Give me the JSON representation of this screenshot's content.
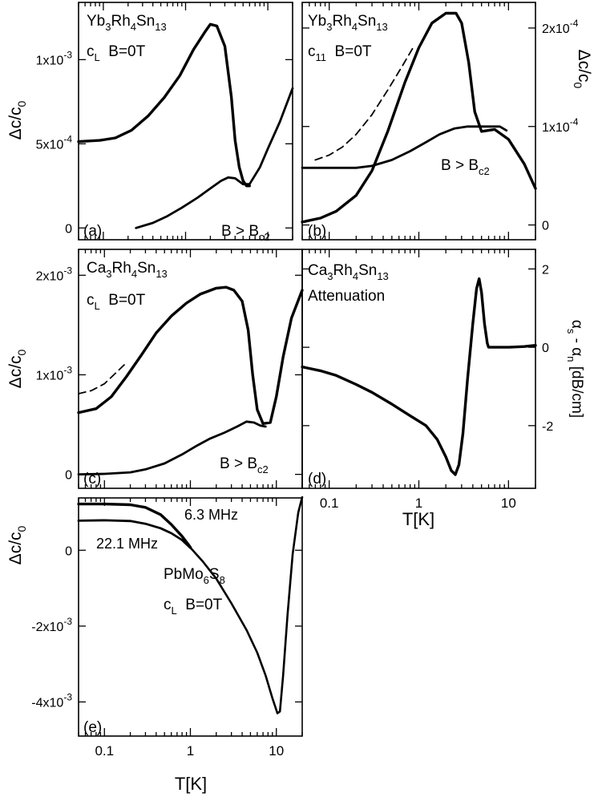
{
  "chart_data": [
    {
      "panel": "(a)",
      "type": "line",
      "compound": "Yb3Rh4Sn13",
      "mode": "cL",
      "field": "B=0T",
      "ylabel": "Δc/c0",
      "xscale": "log",
      "xlim": [
        0.05,
        20
      ],
      "ylim": [
        -7e-05,
        0.00134
      ],
      "yticks": [
        0,
        0.0005,
        0.001
      ],
      "ytick_labels": [
        {
          "mant": "0",
          "exp": ""
        },
        {
          "mant": "5x10",
          "exp": "-4"
        },
        {
          "mant": "1x10",
          "exp": "-3"
        }
      ],
      "annotations": [
        "B > Bc2"
      ],
      "series": [
        {
          "name": "B=0T",
          "dash": "solid",
          "x": [
            0.05,
            0.09,
            0.14,
            0.22,
            0.35,
            0.55,
            0.85,
            1.25,
            1.75,
            2.0,
            2.4,
            3.0,
            3.6,
            4.0,
            4.5,
            5.0,
            5.5,
            6.0
          ],
          "y": [
            0.000513,
            0.00052,
            0.000535,
            0.00058,
            0.000665,
            0.000775,
            0.000905,
            0.00106,
            0.00117,
            0.00121,
            0.0012,
            0.00108,
            0.00078,
            0.00052,
            0.00036,
            0.00028,
            0.00025,
            0.00025
          ]
        },
        {
          "name": "B > Bc2",
          "dash": "solid",
          "x": [
            0.25,
            0.4,
            0.6,
            0.9,
            1.4,
            2.0,
            2.7,
            3.3,
            4.0,
            5.0,
            6.0,
            8.0,
            10,
            14,
            20
          ],
          "y": [
            0.0,
            3e-05,
            7e-05,
            0.00012,
            0.00018,
            0.000235,
            0.00028,
            0.0003,
            0.000295,
            0.00026,
            0.00026,
            0.00036,
            0.00047,
            0.00063,
            0.00083
          ]
        }
      ]
    },
    {
      "panel": "(b)",
      "type": "line",
      "compound": "Yb3Rh4Sn13",
      "mode": "c11",
      "field": "B=0T",
      "ylabel": "Δc/c0",
      "ylabel_side": "right",
      "xscale": "log",
      "xlim": [
        0.05,
        20
      ],
      "ylim": [
        -1.5e-05,
        0.000226
      ],
      "yticks": [
        0,
        0.0001,
        0.0002
      ],
      "ytick_labels": [
        {
          "mant": "0",
          "exp": ""
        },
        {
          "mant": "1x10",
          "exp": "-4"
        },
        {
          "mant": "2x10",
          "exp": "-4"
        }
      ],
      "annotations": [
        "B > Bc2"
      ],
      "series": [
        {
          "name": "B=0T",
          "dash": "solid",
          "x": [
            0.05,
            0.08,
            0.12,
            0.2,
            0.3,
            0.45,
            0.7,
            1.0,
            1.4,
            2.0,
            2.6,
            3.0,
            3.6,
            4.2,
            5.0,
            7.0,
            10,
            15,
            20
          ],
          "y": [
            3e-06,
            7e-06,
            1.4e-05,
            3e-05,
            5.5e-05,
            9.5e-05,
            0.000145,
            0.00018,
            0.000205,
            0.000215,
            0.000215,
            0.000205,
            0.000165,
            0.000115,
            9.5e-05,
            9.7e-05,
            8.7e-05,
            6.2e-05,
            3.7e-05
          ]
        },
        {
          "name": "B > Bc2",
          "dash": "solid",
          "x": [
            0.05,
            0.1,
            0.2,
            0.3,
            0.5,
            0.8,
            1.2,
            1.7,
            2.5,
            3.5,
            5.0,
            6.5,
            8.0,
            9.5
          ],
          "y": [
            5.8e-05,
            5.8e-05,
            5.8e-05,
            6e-05,
            6.6e-05,
            7.5e-05,
            8.4e-05,
            9.2e-05,
            9.8e-05,
            0.0001,
            0.0001,
            0.0001,
            0.0001,
            9.6e-05
          ]
        },
        {
          "name": "",
          "dash": "dashed",
          "x": [
            0.07,
            0.1,
            0.14,
            0.2,
            0.3,
            0.45,
            0.65,
            0.9
          ],
          "y": [
            6.6e-05,
            7.1e-05,
            7.9e-05,
            9.2e-05,
            0.000112,
            0.000137,
            0.000161,
            0.000183
          ]
        }
      ]
    },
    {
      "panel": "(c)",
      "type": "line",
      "compound": "Ca3Rh4Sn13",
      "mode": "cL",
      "field": "B=0T",
      "ylabel": "Δc/c0",
      "xscale": "log",
      "xlim": [
        0.05,
        20
      ],
      "ylim": [
        -0.00014,
        0.00226
      ],
      "yticks": [
        0,
        0.001,
        0.002
      ],
      "ytick_labels": [
        {
          "mant": "0",
          "exp": ""
        },
        {
          "mant": "1x10",
          "exp": "-3"
        },
        {
          "mant": "2x10",
          "exp": "-3"
        }
      ],
      "annotations": [
        "B > Bc2"
      ],
      "series": [
        {
          "name": "B=0T",
          "dash": "solid",
          "x": [
            0.05,
            0.08,
            0.12,
            0.18,
            0.27,
            0.4,
            0.6,
            0.9,
            1.3,
            2.0,
            2.6,
            3.2,
            4.0,
            4.7,
            5.3,
            6.0,
            7.0,
            8.5,
            10,
            12,
            15,
            20
          ],
          "y": [
            0.00062,
            0.00066,
            0.00078,
            0.00098,
            0.0012,
            0.00142,
            0.00159,
            0.00172,
            0.00181,
            0.00187,
            0.00188,
            0.00185,
            0.00174,
            0.00145,
            0.001,
            0.00065,
            0.00051,
            0.00052,
            0.00078,
            0.00118,
            0.00157,
            0.00185
          ]
        },
        {
          "name": "B > Bc2",
          "dash": "solid",
          "x": [
            0.05,
            0.1,
            0.2,
            0.3,
            0.5,
            0.8,
            1.2,
            1.7,
            2.5,
            3.5,
            4.5,
            5.5,
            6.5,
            7.5
          ],
          "y": [
            0.0,
            5e-06,
            2e-05,
            5e-05,
            0.00011,
            0.0002,
            0.00029,
            0.00036,
            0.00042,
            0.00048,
            0.00053,
            0.00052,
            0.00049,
            0.00048
          ]
        },
        {
          "name": "",
          "dash": "dashed",
          "x": [
            0.05,
            0.07,
            0.1,
            0.14,
            0.18
          ],
          "y": [
            0.00081,
            0.00084,
            0.00091,
            0.00103,
            0.00112
          ]
        }
      ]
    },
    {
      "panel": "(d)",
      "type": "line",
      "compound": "Ca3Rh4Sn13",
      "mode": "Attenuation",
      "ylabel": "αs - αn [dB/cm]",
      "ylabel_side": "right",
      "xlabel": "T[K]",
      "xscale": "log",
      "xlim": [
        0.05,
        20
      ],
      "ylim": [
        -3.6,
        2.5
      ],
      "yticks": [
        -2,
        0,
        2
      ],
      "ytick_labels": [
        {
          "mant": "-2",
          "exp": ""
        },
        {
          "mant": "0",
          "exp": ""
        },
        {
          "mant": "2",
          "exp": ""
        }
      ],
      "xticks": [
        0.1,
        1,
        10
      ],
      "xtick_labels": [
        "0.1",
        "1",
        "10"
      ],
      "series": [
        {
          "name": "Attenuation",
          "dash": "solid",
          "x": [
            0.05,
            0.08,
            0.12,
            0.2,
            0.3,
            0.5,
            0.8,
            1.2,
            1.6,
            2.0,
            2.3,
            2.55,
            2.8,
            3.1,
            3.5,
            4.0,
            4.4,
            4.7,
            5.0,
            5.4,
            5.8,
            6.0,
            7.0,
            8.0,
            10,
            15,
            20
          ],
          "y": [
            -0.5,
            -0.6,
            -0.72,
            -0.95,
            -1.15,
            -1.45,
            -1.75,
            -2.0,
            -2.35,
            -2.8,
            -3.15,
            -3.25,
            -3.0,
            -2.2,
            -0.8,
            0.6,
            1.5,
            1.75,
            1.4,
            0.6,
            0.1,
            0.0,
            0.0,
            0.0,
            0.0,
            0.02,
            0.05
          ]
        }
      ]
    },
    {
      "panel": "(e)",
      "type": "line",
      "compound": "PbMo6S8",
      "mode": "cL",
      "field": "B=0T",
      "ylabel": "Δc/c0",
      "xlabel": "T[K]",
      "xscale": "log",
      "xlim": [
        0.05,
        20
      ],
      "ylim": [
        -0.0049,
        0.00138
      ],
      "yticks": [
        -0.004,
        -0.002,
        0
      ],
      "ytick_labels": [
        {
          "mant": "-4x10",
          "exp": "-3"
        },
        {
          "mant": "-2x10",
          "exp": "-3"
        },
        {
          "mant": "0",
          "exp": ""
        }
      ],
      "xticks": [
        0.1,
        1,
        10
      ],
      "xtick_labels": [
        "0.1",
        "1",
        "10"
      ],
      "series": [
        {
          "name": "6.3 MHz",
          "dash": "solid",
          "x": [
            0.05,
            0.1,
            0.2,
            0.3,
            0.45,
            0.6,
            0.8,
            1.0
          ],
          "y": [
            0.00122,
            0.00122,
            0.0012,
            0.00113,
            0.00094,
            0.00068,
            0.00037,
            8e-05
          ]
        },
        {
          "name": "22.1 MHz",
          "dash": "solid",
          "x": [
            0.05,
            0.1,
            0.2,
            0.3,
            0.45,
            0.6,
            0.8,
            1.0
          ],
          "y": [
            0.00078,
            0.00079,
            0.00077,
            0.0007,
            0.00058,
            0.00045,
            0.00027,
            6e-05
          ]
        },
        {
          "name": "",
          "dash": "solid",
          "x": [
            1.0,
            1.4,
            2.0,
            3.0,
            4.5,
            6.0,
            7.5,
            9.0,
            10.3,
            11.0,
            12.0,
            13.5,
            15.5,
            18.0,
            20
          ],
          "y": [
            7e-05,
            -0.0003,
            -0.00075,
            -0.0014,
            -0.0021,
            -0.0027,
            -0.0033,
            -0.0039,
            -0.0043,
            -0.00425,
            -0.0033,
            -0.0017,
            -0.0001,
            0.001,
            0.0014
          ]
        }
      ]
    }
  ],
  "panels": {
    "a": {
      "tag": "(a)",
      "compound": {
        "p1": "Yb",
        "s1": "3",
        "p2": "Rh",
        "s2": "4",
        "p3": "Sn",
        "s3": "13"
      },
      "mode": {
        "main": "c",
        "sub": "L",
        "rest": "  B=0T"
      },
      "ylab": {
        "main": "Δc/c",
        "sub": "0"
      },
      "note": {
        "main": "B > B",
        "sub": "c2"
      }
    },
    "b": {
      "tag": "(b)",
      "compound": {
        "p1": "Yb",
        "s1": "3",
        "p2": "Rh",
        "s2": "4",
        "p3": "Sn",
        "s3": "13"
      },
      "mode": {
        "main": "c",
        "sub": "11",
        "rest": "  B=0T"
      },
      "ylab": {
        "main": "Δc/c",
        "sub": "0"
      },
      "note": {
        "main": "B > B",
        "sub": "c2"
      }
    },
    "c": {
      "tag": "(c)",
      "compound": {
        "p1": "Ca",
        "s1": "3",
        "p2": "Rh",
        "s2": "4",
        "p3": "Sn",
        "s3": "13"
      },
      "mode": {
        "main": "c",
        "sub": "L",
        "rest": "  B=0T"
      },
      "ylab": {
        "main": "Δc/c",
        "sub": "0"
      },
      "note": {
        "main": "B > B",
        "sub": "c2"
      }
    },
    "d": {
      "tag": "(d)",
      "compound": {
        "p1": "Ca",
        "s1": "3",
        "p2": "Rh",
        "s2": "4",
        "p3": "Sn",
        "s3": "13"
      },
      "mode_text": "Attenuation",
      "ylab": {
        "a1": "α",
        "s1": "s",
        "mid": " - α",
        "s2": "n",
        "rest": " [dB/cm]"
      },
      "xlab": "T[K]"
    },
    "e": {
      "tag": "(e)",
      "compound": {
        "p1": "PbMo",
        "s1": "6",
        "p2": "S",
        "s2": "8"
      },
      "mode": {
        "main": "c",
        "sub": "L",
        "rest": "  B=0T"
      },
      "ylab": {
        "main": "Δc/c",
        "sub": "0"
      },
      "freq1": "6.3 MHz",
      "freq2": "22.1 MHz",
      "xlab": "T[K]"
    }
  }
}
